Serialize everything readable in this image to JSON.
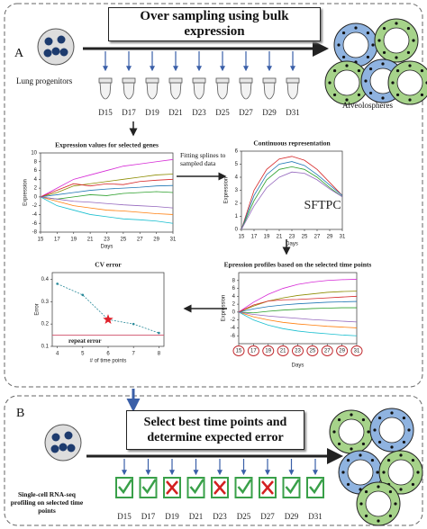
{
  "panel_a": {
    "label": "A",
    "title": "Over sampling using bulk expression",
    "source_label": "Lung progenitors",
    "target_label": "Alveolospheres",
    "days": [
      "D15",
      "D17",
      "D19",
      "D21",
      "D23",
      "D25",
      "D27",
      "D29",
      "D31"
    ]
  },
  "expression_chart": {
    "type": "line",
    "title": "Expression values for selected genes",
    "xlabel": "Days",
    "ylabel": "Expression",
    "xlim": [
      15,
      31
    ],
    "ylim": [
      -8,
      10
    ],
    "xticks": [
      15,
      17,
      19,
      21,
      23,
      25,
      27,
      29,
      31
    ],
    "yticks": [
      -8,
      -6,
      -4,
      -2,
      0,
      2,
      4,
      6,
      8,
      10
    ],
    "x": [
      15,
      17,
      19,
      21,
      23,
      25,
      27,
      29,
      31
    ],
    "series": [
      {
        "color": "#d62bd6",
        "values": [
          0,
          2,
          4,
          5,
          6,
          7,
          7.5,
          8,
          8.5
        ]
      },
      {
        "color": "#8c8c00",
        "values": [
          0,
          1,
          2.5,
          3,
          3.5,
          4,
          4.5,
          5,
          5.2
        ]
      },
      {
        "color": "#1f77b4",
        "values": [
          0,
          0.5,
          1,
          1.5,
          1.8,
          2,
          2.2,
          2.5,
          2.6
        ]
      },
      {
        "color": "#2ca02c",
        "values": [
          0,
          -0.5,
          0,
          0.5,
          0.3,
          0.8,
          1,
          1.2,
          1
        ]
      },
      {
        "color": "#ff7f0e",
        "values": [
          0,
          -1,
          -2,
          -2.5,
          -3,
          -3.2,
          -3.5,
          -3.8,
          -4
        ]
      },
      {
        "color": "#17becf",
        "values": [
          0,
          -2,
          -3,
          -4,
          -4.5,
          -5,
          -5.2,
          -5.5,
          -6
        ]
      },
      {
        "color": "#d62728",
        "values": [
          0,
          1.5,
          3,
          2.5,
          3,
          2.8,
          3.5,
          3.8,
          4
        ]
      },
      {
        "color": "#9467bd",
        "values": [
          0,
          -0.5,
          -1,
          -1.2,
          -1.5,
          -1.8,
          -2,
          -2.2,
          -2.5
        ]
      }
    ]
  },
  "fitting_note": "Fitting splines to sampled data",
  "continuous_chart": {
    "type": "line",
    "title": "Continuous representation",
    "gene": "SFTPC",
    "xlabel": "Days",
    "ylabel": "Expression",
    "xlim": [
      15,
      31
    ],
    "ylim": [
      0,
      6
    ],
    "xticks": [
      15,
      17,
      19,
      21,
      23,
      25,
      27,
      29,
      31
    ],
    "yticks": [
      0,
      1,
      2,
      3,
      4,
      5,
      6
    ],
    "x": [
      15,
      17,
      19,
      21,
      23,
      25,
      27,
      29,
      31
    ],
    "series": [
      {
        "color": "#d62728",
        "values": [
          0,
          3,
          4.6,
          5.4,
          5.6,
          5.3,
          4.6,
          3.6,
          2.6
        ]
      },
      {
        "color": "#1f77b4",
        "values": [
          0,
          2.6,
          4.2,
          5,
          5.2,
          4.9,
          4.2,
          3.4,
          2.6
        ]
      },
      {
        "color": "#2ca02c",
        "values": [
          0,
          2.2,
          3.8,
          4.6,
          4.8,
          4.6,
          4,
          3.2,
          2.5
        ]
      },
      {
        "color": "#9467bd",
        "values": [
          0,
          1.8,
          3.2,
          4,
          4.4,
          4.3,
          3.8,
          3.1,
          2.5
        ]
      }
    ]
  },
  "profiles_chart": {
    "type": "line",
    "title": "Epression profiles based on the selected time points",
    "xlabel": "Days",
    "ylabel": "Expression",
    "xlim": [
      15,
      31
    ],
    "ylim": [
      -8,
      10
    ],
    "xticks": [
      15,
      17,
      19,
      21,
      23,
      25,
      27,
      29,
      31
    ],
    "yticks": [
      -6,
      -4,
      -2,
      0,
      2,
      4,
      6,
      8
    ],
    "x": [
      15,
      17,
      19,
      21,
      23,
      25,
      27,
      29,
      31
    ],
    "series": [
      {
        "color": "#d62bd6",
        "values": [
          0,
          2.5,
          4.5,
          6,
          7,
          7.6,
          8,
          8.2,
          8.3
        ]
      },
      {
        "color": "#8c8c00",
        "values": [
          0,
          1.5,
          2.8,
          3.6,
          4.2,
          4.6,
          5,
          5.2,
          5.3
        ]
      },
      {
        "color": "#1f77b4",
        "values": [
          0,
          0.8,
          1.4,
          1.8,
          2.1,
          2.3,
          2.5,
          2.6,
          2.7
        ]
      },
      {
        "color": "#2ca02c",
        "values": [
          0,
          -0.2,
          0.2,
          0.5,
          0.7,
          0.9,
          1,
          1.1,
          1.1
        ]
      },
      {
        "color": "#ff7f0e",
        "values": [
          0,
          -1.2,
          -2,
          -2.6,
          -3,
          -3.3,
          -3.6,
          -3.8,
          -4
        ]
      },
      {
        "color": "#17becf",
        "values": [
          0,
          -2,
          -3.3,
          -4.2,
          -4.8,
          -5.2,
          -5.5,
          -5.8,
          -6
        ]
      },
      {
        "color": "#d62728",
        "values": [
          0,
          1.8,
          2.8,
          3.1,
          3.2,
          3.4,
          3.6,
          3.8,
          4
        ]
      },
      {
        "color": "#9467bd",
        "values": [
          0,
          -0.6,
          -1,
          -1.3,
          -1.6,
          -1.9,
          -2.1,
          -2.3,
          -2.5
        ]
      }
    ]
  },
  "cv_chart": {
    "type": "line",
    "title": "CV error",
    "xlabel": "# of time points",
    "ylabel": "Error",
    "xlim": [
      3.8,
      8.2
    ],
    "ylim": [
      0.1,
      0.43
    ],
    "xticks": [
      4,
      5,
      6,
      7,
      8
    ],
    "yticks": [
      0.1,
      0.2,
      0.3,
      0.4
    ],
    "x": [
      4,
      5,
      6,
      7,
      8
    ],
    "values": [
      0.38,
      0.33,
      0.22,
      0.2,
      0.16
    ],
    "selected_x": 6,
    "repeat_error": 0.15,
    "repeat_label": "repeat error"
  },
  "panel_b": {
    "label": "B",
    "title": "Select best time points and determine expected error",
    "protocol_label": "Single-cell RNA-seq profiling on selected time points",
    "days": [
      "D15",
      "D17",
      "D19",
      "D21",
      "D23",
      "D25",
      "D27",
      "D29",
      "D31"
    ],
    "selected": [
      true,
      true,
      false,
      true,
      false,
      true,
      false,
      true,
      true
    ]
  }
}
